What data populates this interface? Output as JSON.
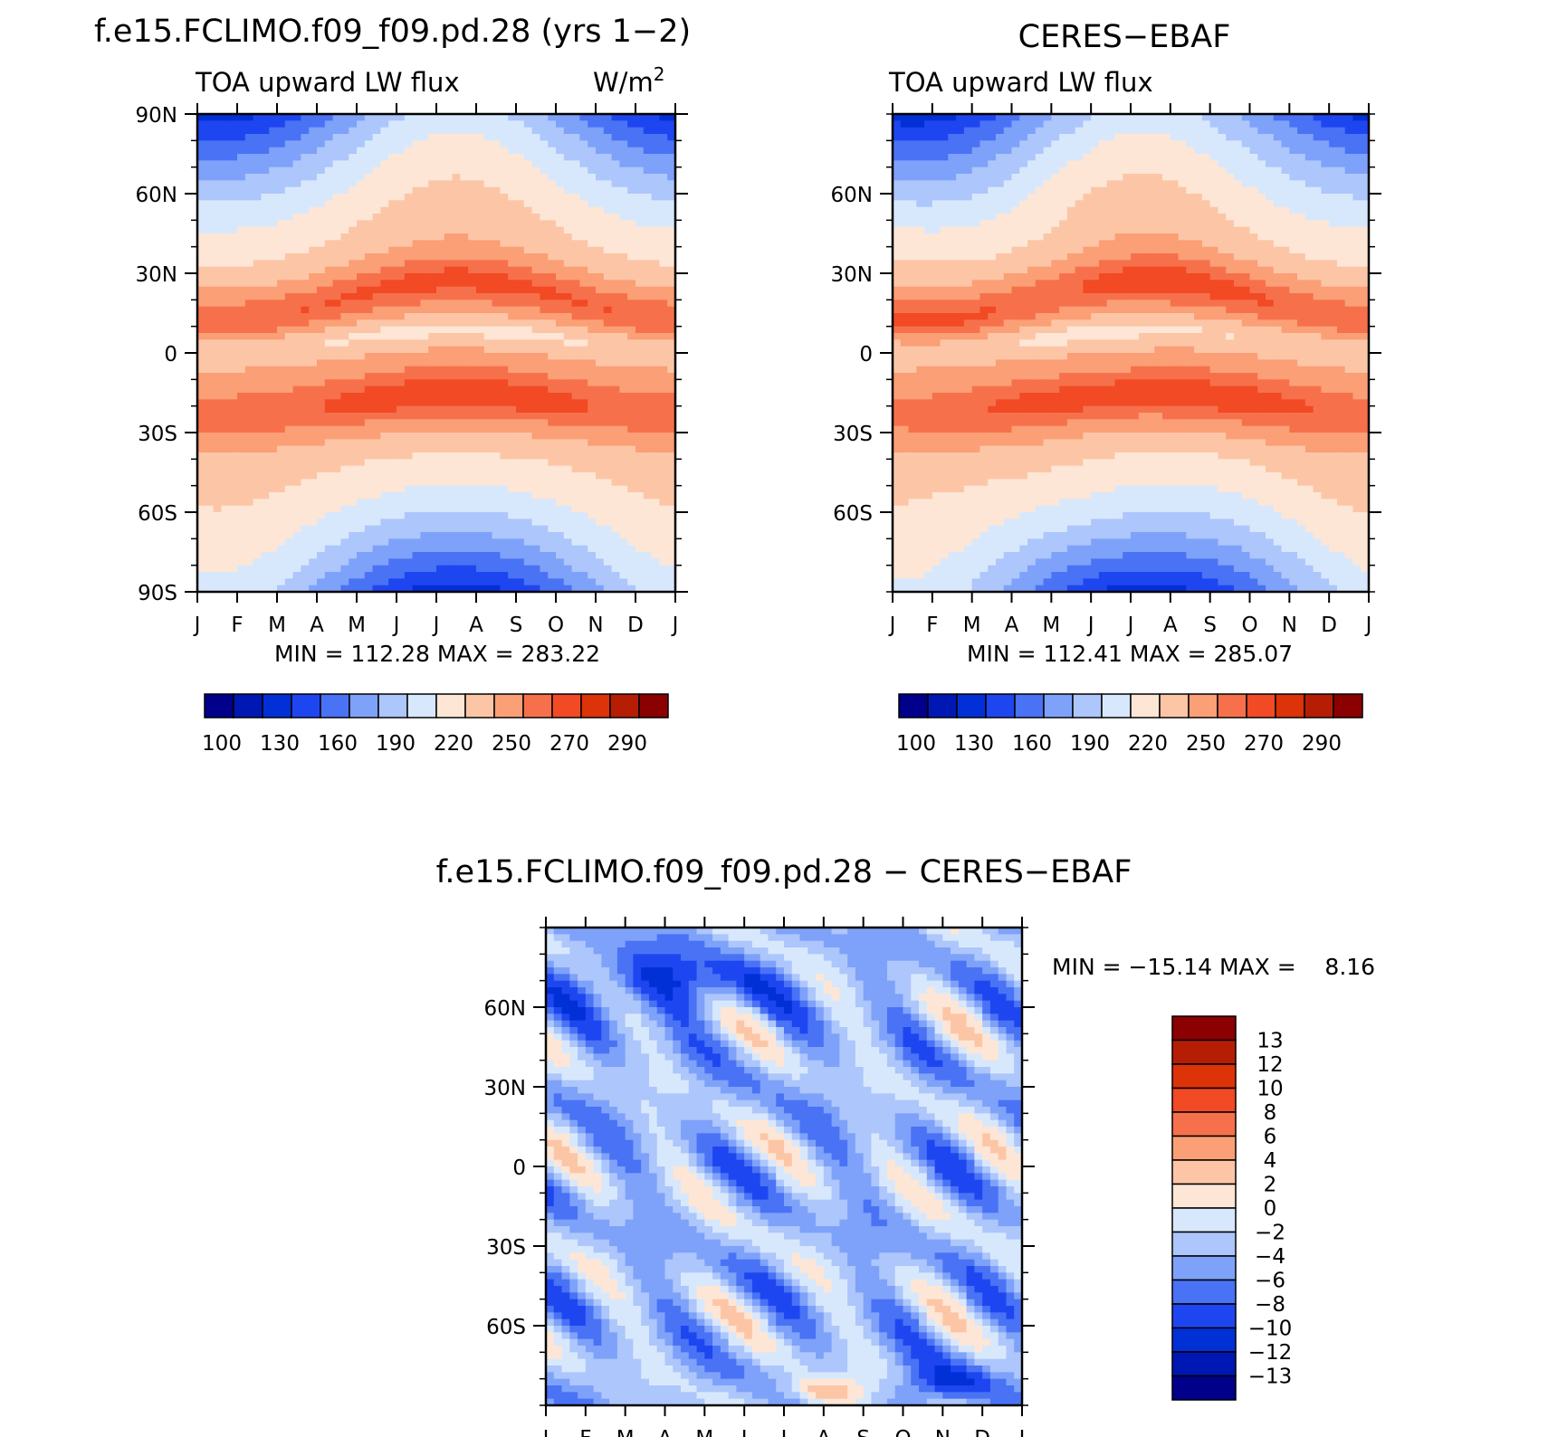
{
  "colors": {
    "abs": [
      "#00008b",
      "#0018b3",
      "#0030d6",
      "#1e46f0",
      "#4a72f5",
      "#7ea2f9",
      "#adc6fb",
      "#d8e8fc",
      "#fde6d6",
      "#fcc6a6",
      "#fb9f76",
      "#f6714b",
      "#f14a24",
      "#dc3308",
      "#b51e05",
      "#8b0000"
    ],
    "diff": [
      "#00008b",
      "#0018b3",
      "#0030d6",
      "#1e46f0",
      "#4a72f5",
      "#7ea2f9",
      "#adc6fb",
      "#d8e8fc",
      "#fde6d6",
      "#fcc6a6",
      "#fb9f76",
      "#f6714b",
      "#f14a24",
      "#dc3308",
      "#b51e05",
      "#8b0000"
    ]
  },
  "chart_data": [
    {
      "type": "heatmap",
      "title": "f.e15.FCLIMO.f09_f09.pd.28 (yrs 1−2)",
      "left_subtitle": "TOA upward LW flux",
      "units": "W/m",
      "units_sup": "2",
      "x_tick_labels": [
        "J",
        "F",
        "M",
        "A",
        "M",
        "J",
        "J",
        "A",
        "S",
        "O",
        "N",
        "D",
        "J"
      ],
      "y_tick_labels": [
        "90N",
        "60N",
        "30N",
        "0",
        "30S",
        "60S",
        "90S"
      ],
      "y_tick_values": [
        90,
        60,
        30,
        0,
        -30,
        -60,
        -90
      ],
      "ylim": [
        -90,
        90
      ],
      "stats": "MIN = 112.28 MAX = 283.22",
      "colorbar_labels": [
        "100",
        "130",
        "160",
        "190",
        "220",
        "250",
        "270",
        "290"
      ],
      "levels": [
        100,
        115,
        130,
        145,
        160,
        175,
        190,
        205,
        220,
        235,
        250,
        260,
        270,
        280,
        290
      ],
      "field": "model"
    },
    {
      "type": "heatmap",
      "title": "CERES−EBAF",
      "left_subtitle": "TOA upward LW flux",
      "x_tick_labels": [
        "J",
        "F",
        "M",
        "A",
        "M",
        "J",
        "J",
        "A",
        "S",
        "O",
        "N",
        "D",
        "J"
      ],
      "y_tick_labels": [
        "60N",
        "30N",
        "0",
        "30S",
        "60S"
      ],
      "y_tick_values": [
        60,
        30,
        0,
        -30,
        -60
      ],
      "ylim": [
        -90,
        90
      ],
      "stats": "MIN = 112.41 MAX = 285.07",
      "colorbar_labels": [
        "100",
        "130",
        "160",
        "190",
        "220",
        "250",
        "270",
        "290"
      ],
      "levels": [
        100,
        115,
        130,
        145,
        160,
        175,
        190,
        205,
        220,
        235,
        250,
        260,
        270,
        280,
        290
      ],
      "field": "obs"
    },
    {
      "type": "heatmap",
      "title": "f.e15.FCLIMO.f09_f09.pd.28 − CERES−EBAF",
      "x_tick_labels": [
        "J",
        "F",
        "M",
        "A",
        "M",
        "J",
        "J",
        "A",
        "S",
        "O",
        "N",
        "D",
        "J"
      ],
      "y_tick_labels": [
        "60N",
        "30N",
        "0",
        "30S",
        "60S"
      ],
      "y_tick_values": [
        60,
        30,
        0,
        -30,
        -60
      ],
      "ylim": [
        -90,
        90
      ],
      "stats": "MIN = −15.14 MAX =    8.16",
      "colorbar_labels": [
        "13",
        "12",
        "10",
        "8",
        "6",
        "4",
        "2",
        "0",
        "−2",
        "−4",
        "−6",
        "−8",
        "−10",
        "−12",
        "−13"
      ],
      "levels": [
        -13,
        -12,
        -10,
        -8,
        -6,
        -4,
        -2,
        0,
        2,
        4,
        6,
        8,
        10,
        12,
        13
      ],
      "field": "diff"
    }
  ]
}
